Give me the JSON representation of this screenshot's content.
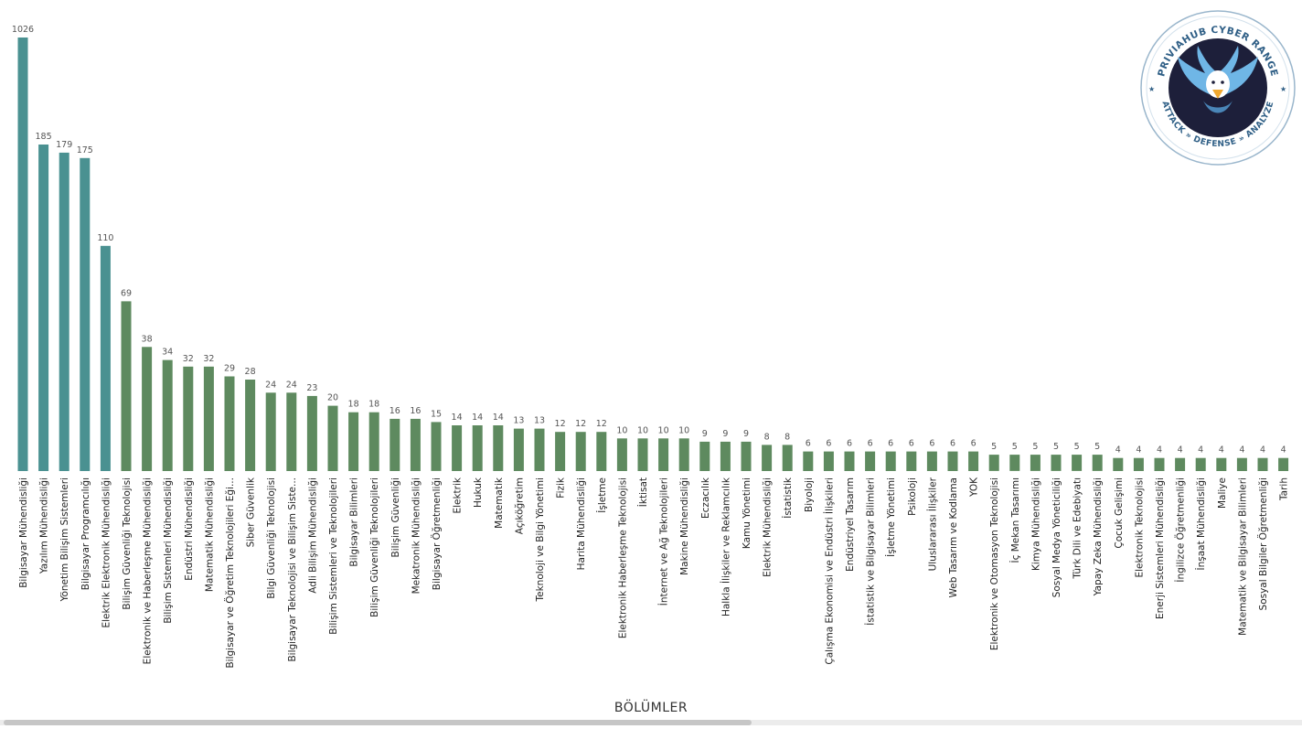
{
  "chart_data": {
    "type": "bar",
    "xlabel": "BÖLÜMLER",
    "ylabel": "",
    "ylim": [
      0,
      1026
    ],
    "grid": false,
    "legend": "none",
    "colors": {
      "highlight": "#4a9191",
      "default": "#5e8a5f"
    },
    "highlighted_count": 5,
    "categories": [
      "Bilgisayar Mühendisliği",
      "Yazılım Mühendisliği",
      "Yönetim Bilişim Sistemleri",
      "Bilgisayar Programcılığı",
      "Elektrik Elektronik Mühendisliği",
      "Bilişim Güvenliği Teknolojisi",
      "Elektronik ve Haberleşme Mühendisliği",
      "Bilişim Sistemleri Mühendisliği",
      "Endüstri Mühendisliği",
      "Matematik Mühendisliği",
      "Bilgisayar ve Öğretim Teknolojileri Eği...",
      "Siber Güvenlik",
      "Bilgi Güvenliği Teknolojisi",
      "Bilgisayar Teknolojisi ve Bilişim Siste...",
      "Adli Bilişim Mühendisliği",
      "Bilişim Sistemleri ve Teknolojileri",
      "Bilgisayar Bilimleri",
      "Bilişim Güvenliği Teknolojileri",
      "Bilişim Güvenliği",
      "Mekatronik Mühendisliği",
      "Bilgisayar Öğretmenliği",
      "Elektrik",
      "Hukuk",
      "Matematik",
      "Açıköğretim",
      "Teknoloji ve Bilgi Yönetimi",
      "Fizik",
      "Harita Mühendisliği",
      "İşletme",
      "Elektronik Haberleşme Teknolojisi",
      "İktisat",
      "İnternet ve Ağ Teknolojileri",
      "Makine Mühendisliği",
      "Eczacılık",
      "Halkla İlişkiler ve Reklamcılık",
      "Kamu Yönetimi",
      "Elektrik Mühendisliği",
      "İstatistik",
      "Biyoloji",
      "Çalışma Ekonomisi ve Endüstri İlişkileri",
      "Endüstriyel Tasarım",
      "İstatistik ve Bilgisayar Bilimleri",
      "İşletme Yönetimi",
      "Psikoloji",
      "Uluslararası İlişkiler",
      "Web Tasarım ve Kodlama",
      "YOK",
      "Elektronik ve Otomasyon Teknolojisi",
      "İç Mekan Tasarımı",
      "Kimya Mühendisliği",
      "Sosyal Medya Yöneticiliği",
      "Türk Dili ve Edebiyatı",
      "Yapay Zeka Mühendisliği",
      "Çocuk Gelişimi",
      "Elektronik Teknolojisi",
      "Enerji Sistemleri Mühendisliği",
      "İngilizce Öğretmenliği",
      "İnşaat Mühendisliği",
      "Maliye",
      "Matematik ve Bilgisayar Bilimleri",
      "Sosyal Bilgiler Öğretmenliği",
      "Tarih"
    ],
    "values": [
      1026,
      185,
      179,
      175,
      110,
      69,
      38,
      34,
      32,
      32,
      29,
      28,
      24,
      24,
      23,
      20,
      18,
      18,
      16,
      16,
      15,
      14,
      14,
      14,
      13,
      13,
      12,
      12,
      12,
      10,
      10,
      10,
      10,
      9,
      9,
      9,
      8,
      8,
      6,
      6,
      6,
      6,
      6,
      6,
      6,
      6,
      6,
      5,
      5,
      5,
      5,
      5,
      5,
      4,
      4,
      4,
      4,
      4,
      4,
      4,
      4,
      4
    ]
  },
  "logo": {
    "top_text": "PRIVIAHUB CYBER RANGE",
    "bottom_text": "ATTACK » DEFENSE » ANALYZE",
    "colors": {
      "ring": "#2f5f86",
      "center": "#1d1f3a",
      "wing": "#6fb6e6",
      "head": "#ffffff",
      "beak": "#f0a830"
    }
  }
}
